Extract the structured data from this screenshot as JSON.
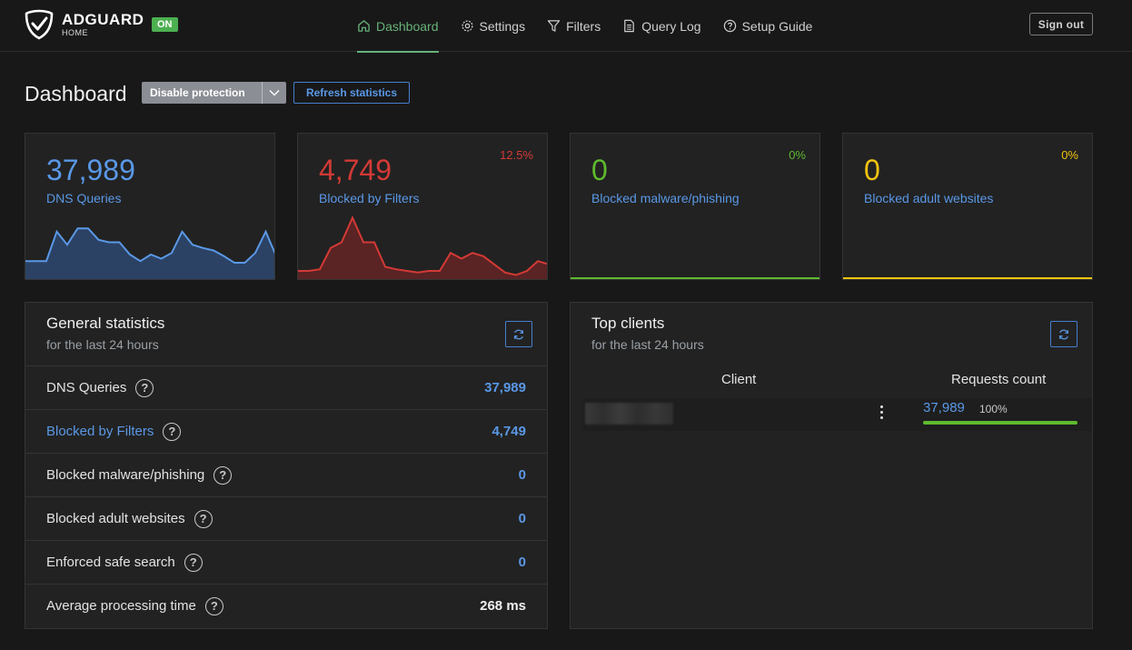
{
  "header": {
    "logo_title": "ADGUARD",
    "logo_sub": "HOME",
    "status_badge": "ON",
    "nav": [
      {
        "label": "Dashboard",
        "icon": "home-icon",
        "active": true
      },
      {
        "label": "Settings",
        "icon": "gear-icon",
        "active": false
      },
      {
        "label": "Filters",
        "icon": "filter-icon",
        "active": false
      },
      {
        "label": "Query Log",
        "icon": "document-icon",
        "active": false
      },
      {
        "label": "Setup Guide",
        "icon": "help-circle-icon",
        "active": false
      }
    ],
    "signout_label": "Sign out"
  },
  "page": {
    "title": "Dashboard",
    "disable_label": "Disable protection",
    "refresh_label": "Refresh statistics"
  },
  "cards": [
    {
      "value": "37,989",
      "label": "DNS Queries",
      "percent": "",
      "color": "#5a98e6",
      "fill": "#2c4264"
    },
    {
      "value": "4,749",
      "label": "Blocked by Filters",
      "percent": "12.5%",
      "color": "#d33a36",
      "fill": "#5a2324"
    },
    {
      "value": "0",
      "label": "Blocked malware/phishing",
      "percent": "0%",
      "color": "#5eba2e",
      "fill": "#5eba2e"
    },
    {
      "value": "0",
      "label": "Blocked adult websites",
      "percent": "0%",
      "color": "#f1c40f",
      "fill": "#f1c40f"
    }
  ],
  "sparklines": {
    "dns": [
      0.22,
      0.22,
      0.22,
      0.58,
      0.42,
      0.62,
      0.62,
      0.48,
      0.45,
      0.45,
      0.3,
      0.22,
      0.3,
      0.25,
      0.32,
      0.58,
      0.42,
      0.38,
      0.35,
      0.28,
      0.2,
      0.2,
      0.32,
      0.58,
      0.28
    ],
    "blocked": [
      0.1,
      0.1,
      0.12,
      0.38,
      0.45,
      0.75,
      0.45,
      0.45,
      0.15,
      0.12,
      0.1,
      0.08,
      0.1,
      0.1,
      0.32,
      0.25,
      0.32,
      0.28,
      0.18,
      0.08,
      0.05,
      0.1,
      0.22,
      0.18
    ]
  },
  "general_stats": {
    "title": "General statistics",
    "subtitle": "for the last 24 hours",
    "rows": [
      {
        "name": "DNS Queries",
        "value": "37,989"
      },
      {
        "name": "Blocked by Filters",
        "value": "4,749"
      },
      {
        "name": "Blocked malware/phishing",
        "value": "0"
      },
      {
        "name": "Blocked adult websites",
        "value": "0"
      },
      {
        "name": "Enforced safe search",
        "value": "0"
      },
      {
        "name": "Average processing time",
        "value": "268 ms"
      }
    ]
  },
  "top_clients": {
    "title": "Top clients",
    "subtitle": "for the last 24 hours",
    "col_client": "Client",
    "col_requests": "Requests count",
    "rows": [
      {
        "requests": "37,989",
        "percent": "100%",
        "fraction": 1.0
      }
    ]
  }
}
